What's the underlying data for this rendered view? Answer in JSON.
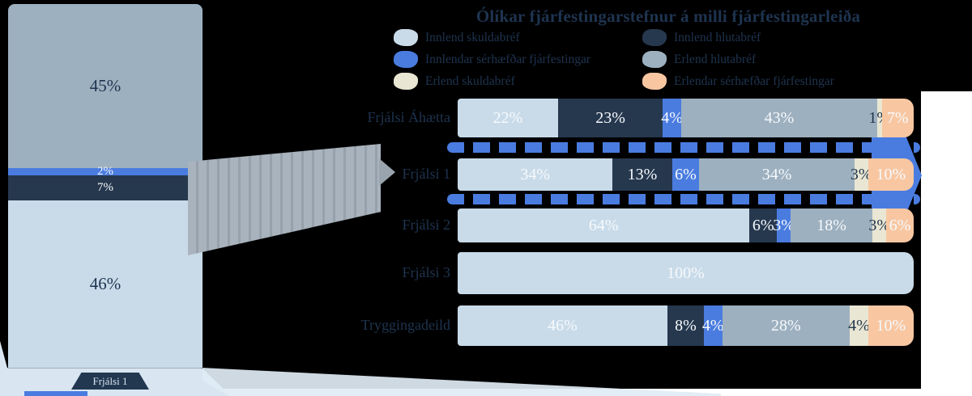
{
  "title": "Ólíkar fjárfestingarstefnur á milli fjárfestingarleiða",
  "palette": {
    "light": "#c9dbe9",
    "navy": "#26384e",
    "blue": "#4a7ce0",
    "gray": "#9db0bf",
    "cream": "#e9e6d3",
    "peach": "#f8c7a2",
    "text_navy": "#1e3450",
    "background": "#000000",
    "margin_white": "#ffffff"
  },
  "legend": {
    "left": [
      {
        "key": "light",
        "label": "Innlend skuldabréf"
      },
      {
        "key": "blue",
        "label": "Innlendar sérhæfðar fjárfestingar"
      },
      {
        "key": "cream",
        "label": "Erlend skuldabréf"
      }
    ],
    "right": [
      {
        "key": "navy",
        "label": "Innlend hlutabréf"
      },
      {
        "key": "gray",
        "label": "Erlend hlutabréf"
      },
      {
        "key": "peach",
        "label": "Erlendar sérhæfðar fjárfestingar"
      }
    ]
  },
  "big_bar": {
    "caption": "Frjálsi 1",
    "segments": [
      {
        "key": "gray",
        "pct": 45,
        "label": "45%"
      },
      {
        "key": "blue",
        "pct": 2,
        "label": "2%"
      },
      {
        "key": "navy",
        "pct": 7,
        "label": "7%"
      },
      {
        "key": "light",
        "pct": 46,
        "label": "46%"
      }
    ]
  },
  "rows": [
    {
      "label": "Frjálsi Áhætta",
      "segments": [
        {
          "key": "light",
          "pct": 22,
          "label": "22%"
        },
        {
          "key": "navy",
          "pct": 23,
          "label": "23%"
        },
        {
          "key": "blue",
          "pct": 4,
          "label": "4%"
        },
        {
          "key": "gray",
          "pct": 43,
          "label": "43%"
        },
        {
          "key": "cream",
          "pct": 1,
          "label": "1%"
        },
        {
          "key": "peach",
          "pct": 7,
          "label": "7%"
        }
      ]
    },
    {
      "label": "Frjálsi 1",
      "segments": [
        {
          "key": "light",
          "pct": 34,
          "label": "34%"
        },
        {
          "key": "navy",
          "pct": 13,
          "label": "13%"
        },
        {
          "key": "blue",
          "pct": 6,
          "label": "6%"
        },
        {
          "key": "gray",
          "pct": 34,
          "label": "34%"
        },
        {
          "key": "cream",
          "pct": 3,
          "label": "3%"
        },
        {
          "key": "peach",
          "pct": 10,
          "label": "10%"
        }
      ]
    },
    {
      "label": "Frjálsi 2",
      "segments": [
        {
          "key": "light",
          "pct": 64,
          "label": "64%"
        },
        {
          "key": "navy",
          "pct": 6,
          "label": "6%"
        },
        {
          "key": "blue",
          "pct": 3,
          "label": "3%"
        },
        {
          "key": "gray",
          "pct": 18,
          "label": "18%"
        },
        {
          "key": "cream",
          "pct": 3,
          "label": "3%"
        },
        {
          "key": "peach",
          "pct": 6,
          "label": "6%"
        }
      ]
    },
    {
      "label": "Frjálsi 3",
      "segments": [
        {
          "key": "light",
          "pct": 100,
          "label": "100%"
        }
      ]
    },
    {
      "label": "Tryggingadeild",
      "segments": [
        {
          "key": "light",
          "pct": 46,
          "label": "46%"
        },
        {
          "key": "navy",
          "pct": 8,
          "label": "8%"
        },
        {
          "key": "blue",
          "pct": 4,
          "label": "4%"
        },
        {
          "key": "gray",
          "pct": 28,
          "label": "28%"
        },
        {
          "key": "cream",
          "pct": 4,
          "label": "4%"
        },
        {
          "key": "peach",
          "pct": 10,
          "label": "10%"
        }
      ]
    }
  ],
  "chart_data": {
    "type": "bar",
    "orientation": "horizontal-stacked-100pct",
    "unit": "%",
    "title": "Ólíkar fjárfestingarstefnur á milli fjárfestingarleiða",
    "categories": [
      "Frjálsi Áhætta",
      "Frjálsi 1",
      "Frjálsi 2",
      "Frjálsi 3",
      "Tryggingadeild"
    ],
    "series": [
      {
        "name": "Innlend skuldabréf",
        "values": [
          22,
          34,
          64,
          100,
          46
        ]
      },
      {
        "name": "Innlend hlutabréf",
        "values": [
          23,
          13,
          6,
          0,
          8
        ]
      },
      {
        "name": "Innlendar sérhæfðar fjárfestingar",
        "values": [
          4,
          6,
          3,
          0,
          4
        ]
      },
      {
        "name": "Erlend hlutabréf",
        "values": [
          43,
          34,
          18,
          0,
          28
        ]
      },
      {
        "name": "Erlend skuldabréf",
        "values": [
          1,
          3,
          3,
          0,
          4
        ]
      },
      {
        "name": "Erlendar sérhæfðar fjárfestingar",
        "values": [
          7,
          10,
          6,
          0,
          10
        ]
      }
    ],
    "highlight_category": "Frjálsi 1",
    "detail_bar": {
      "name": "Frjálsi 1",
      "segments": [
        {
          "name": "Erlend hlutabréf",
          "value": 45
        },
        {
          "name": "Innlendar sérhæfðar fjárfestingar",
          "value": 2
        },
        {
          "name": "Innlend hlutabréf",
          "value": 7
        },
        {
          "name": "Innlend skuldabréf",
          "value": 46
        }
      ]
    },
    "legend_position": "top",
    "grid": false
  }
}
